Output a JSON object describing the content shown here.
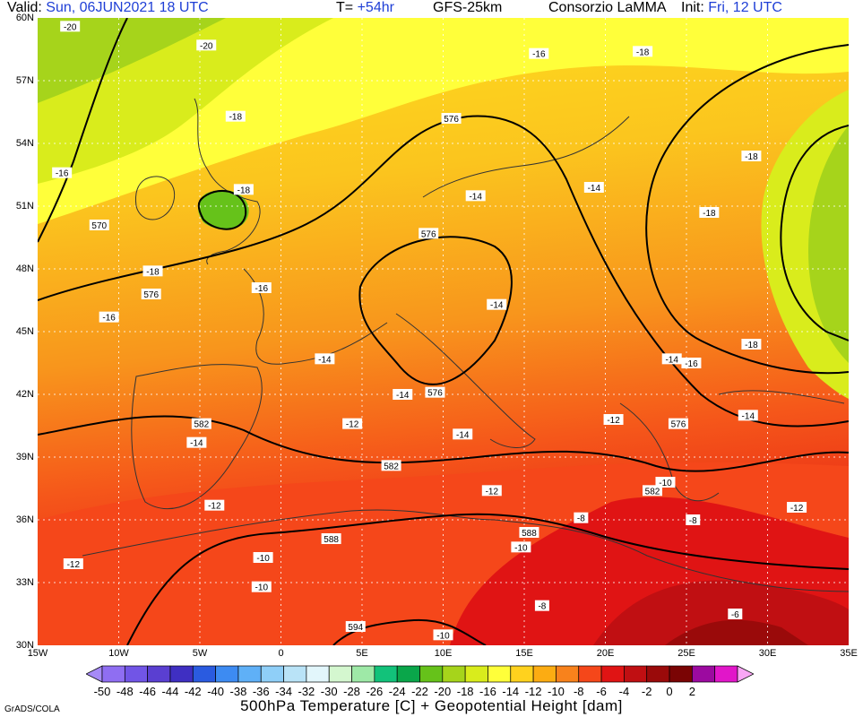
{
  "header": {
    "valid_label": "Valid:",
    "valid_time": "Sun, 06JUN2021 18 UTC",
    "lead_label": "T=",
    "lead_time": "+54hr",
    "model": "GFS-25km",
    "producer": "Consorzio LaMMA",
    "init_label": "Init:",
    "init_time": "Fri, 12 UTC"
  },
  "map": {
    "lon_range": [
      -15,
      35
    ],
    "lat_range": [
      30,
      60
    ],
    "lat_labels": [
      "60N",
      "57N",
      "54N",
      "51N",
      "48N",
      "45N",
      "42N",
      "39N",
      "36N",
      "33N",
      "30N"
    ],
    "lon_labels": [
      "15W",
      "10W",
      "5W",
      "0",
      "5E",
      "10E",
      "15E",
      "20E",
      "25E",
      "30E",
      "35E"
    ],
    "gridlines": "dotted",
    "temperature_labels": [
      {
        "text": "-20",
        "lon": -13,
        "lat": 59.6
      },
      {
        "text": "-20",
        "lon": -4.6,
        "lat": 58.7
      },
      {
        "text": "-18",
        "lon": -2.8,
        "lat": 55.3
      },
      {
        "text": "-16",
        "lon": -13.5,
        "lat": 52.6
      },
      {
        "text": "-18",
        "lon": -2.3,
        "lat": 51.8
      },
      {
        "text": "-18",
        "lon": -7.9,
        "lat": 47.9
      },
      {
        "text": "-16",
        "lon": -1.2,
        "lat": 47.1
      },
      {
        "text": "-16",
        "lon": -10.6,
        "lat": 45.7
      },
      {
        "text": "-14",
        "lon": 12,
        "lat": 51.5
      },
      {
        "text": "-14",
        "lon": 19.3,
        "lat": 51.9
      },
      {
        "text": "-16",
        "lon": 15.9,
        "lat": 58.3
      },
      {
        "text": "-18",
        "lon": 22.3,
        "lat": 58.4
      },
      {
        "text": "-18",
        "lon": 29,
        "lat": 53.4
      },
      {
        "text": "-18",
        "lon": 26.4,
        "lat": 50.7
      },
      {
        "text": "-18",
        "lon": 29,
        "lat": 44.4
      },
      {
        "text": "-14",
        "lon": 13.3,
        "lat": 46.3
      },
      {
        "text": "-14",
        "lon": 2.7,
        "lat": 43.7
      },
      {
        "text": "-16",
        "lon": 25.3,
        "lat": 43.5
      },
      {
        "text": "-14",
        "lon": 24.1,
        "lat": 43.7
      },
      {
        "text": "-14",
        "lon": 7.5,
        "lat": 42
      },
      {
        "text": "-12",
        "lon": 4.4,
        "lat": 40.6
      },
      {
        "text": "-14",
        "lon": -5.2,
        "lat": 39.7
      },
      {
        "text": "-14",
        "lon": 11.2,
        "lat": 40.1
      },
      {
        "text": "-12",
        "lon": 20.5,
        "lat": 40.8
      },
      {
        "text": "-14",
        "lon": 28.8,
        "lat": 41
      },
      {
        "text": "-12",
        "lon": 13,
        "lat": 37.4
      },
      {
        "text": "-10",
        "lon": 23.7,
        "lat": 37.8
      },
      {
        "text": "-12",
        "lon": -4.1,
        "lat": 36.7
      },
      {
        "text": "-8",
        "lon": 18.5,
        "lat": 36.1
      },
      {
        "text": "-8",
        "lon": 25.4,
        "lat": 36
      },
      {
        "text": "-12",
        "lon": 31.8,
        "lat": 36.6
      },
      {
        "text": "-10",
        "lon": -1.1,
        "lat": 34.2
      },
      {
        "text": "-10",
        "lon": 14.8,
        "lat": 34.7
      },
      {
        "text": "-12",
        "lon": -12.8,
        "lat": 33.9
      },
      {
        "text": "-10",
        "lon": -1.2,
        "lat": 32.8
      },
      {
        "text": "-8",
        "lon": 16.1,
        "lat": 31.9
      },
      {
        "text": "-6",
        "lon": 28,
        "lat": 31.5
      },
      {
        "text": "-10",
        "lon": 10,
        "lat": 30.5
      }
    ],
    "height_labels": [
      {
        "text": "576",
        "lon": 10.5,
        "lat": 55.2
      },
      {
        "text": "570",
        "lon": -11.2,
        "lat": 50.1
      },
      {
        "text": "576",
        "lon": 9.1,
        "lat": 49.7
      },
      {
        "text": "576",
        "lon": -8,
        "lat": 46.8
      },
      {
        "text": "576",
        "lon": 9.5,
        "lat": 42.1
      },
      {
        "text": "576",
        "lon": 24.5,
        "lat": 40.6
      },
      {
        "text": "582",
        "lon": -4.9,
        "lat": 40.6
      },
      {
        "text": "582",
        "lon": 6.8,
        "lat": 38.6
      },
      {
        "text": "582",
        "lon": 22.9,
        "lat": 37.4
      },
      {
        "text": "588",
        "lon": 15.3,
        "lat": 35.4
      },
      {
        "text": "588",
        "lon": 3.1,
        "lat": 35.1
      },
      {
        "text": "594",
        "lon": 4.6,
        "lat": 30.9
      }
    ]
  },
  "colorbar": {
    "ticks": [
      "-50",
      "-48",
      "-46",
      "-44",
      "-42",
      "-40",
      "-38",
      "-36",
      "-34",
      "-32",
      "-30",
      "-28",
      "-26",
      "-24",
      "-22",
      "-20",
      "-18",
      "-16",
      "-14",
      "-12",
      "-10",
      "-8",
      "-6",
      "-4",
      "-2",
      "0",
      "2"
    ],
    "colors": [
      "#a68af7",
      "#8f6ef2",
      "#7155e6",
      "#5a3fd1",
      "#3f2fc2",
      "#2a5be0",
      "#3d8bf2",
      "#5fb0f7",
      "#8fcff8",
      "#b9e3f7",
      "#e2f6fb",
      "#d4f7cf",
      "#9ee9a7",
      "#12c27a",
      "#0aa64a",
      "#66c21a",
      "#a6d41b",
      "#d9ec1c",
      "#ffff3a",
      "#ffd21e",
      "#fcac12",
      "#f8821c",
      "#f5471a",
      "#e01414",
      "#c00f12",
      "#9a0a0a",
      "#7a0404",
      "#9c0aa0",
      "#e116c9",
      "#f9a6f5"
    ]
  },
  "footer": {
    "title": "500hPa Temperature [C] + Geopotential Height [dam]",
    "credit": "GrADS/COLA"
  }
}
